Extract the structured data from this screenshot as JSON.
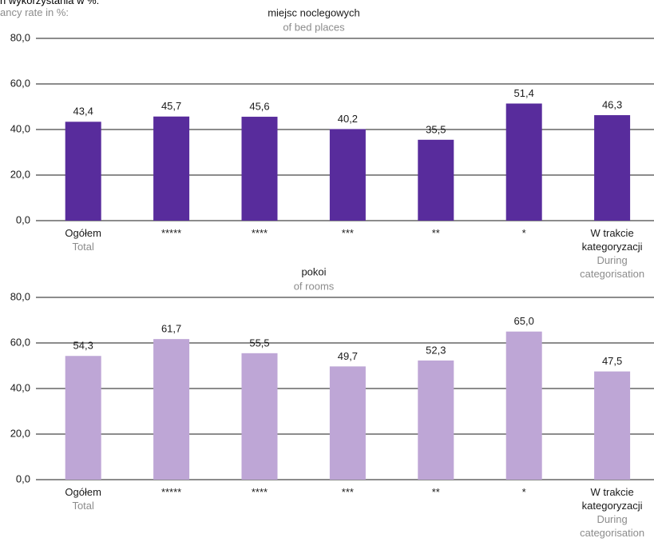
{
  "chart_data": [
    {
      "type": "bar",
      "ylabel": "n wykorzystania w %:",
      "ylabel_en": "ancy rate in %:",
      "title": "miejsc noclegowych",
      "subtitle": "of bed places",
      "categories": [
        "Ogółem",
        "*****",
        "****",
        "***",
        "**",
        "*",
        "W trakcie kategoryzacji"
      ],
      "category_subtitles": [
        "Total",
        null,
        null,
        null,
        null,
        null,
        "During categorisation"
      ],
      "values": [
        43.4,
        45.7,
        45.6,
        40.2,
        35.5,
        51.4,
        46.3
      ],
      "value_labels": [
        "43,4",
        "45,7",
        "45,6",
        "40,2",
        "35,5",
        "51,4",
        "46,3"
      ],
      "color": "#582c9c",
      "ylim": [
        0,
        80
      ],
      "yticks": [
        {
          "value": 0,
          "label": "0,0"
        },
        {
          "value": 20,
          "label": "20,0"
        },
        {
          "value": 40,
          "label": "40,0"
        },
        {
          "value": 60,
          "label": "60,0"
        },
        {
          "value": 80,
          "label": "80,0"
        }
      ],
      "grid": true
    },
    {
      "type": "bar",
      "title": "pokoi",
      "subtitle": "of rooms",
      "categories": [
        "Ogółem",
        "*****",
        "****",
        "***",
        "**",
        "*",
        "W trakcie kategoryzacji"
      ],
      "category_subtitles": [
        "Total",
        null,
        null,
        null,
        null,
        null,
        "During categorisation"
      ],
      "values": [
        54.3,
        61.7,
        55.5,
        49.7,
        52.3,
        65.0,
        47.5
      ],
      "value_labels": [
        "54,3",
        "61,7",
        "55,5",
        "49,7",
        "52,3",
        "65,0",
        "47,5"
      ],
      "color": "#bea6d6",
      "ylim": [
        0,
        80
      ],
      "yticks": [
        {
          "value": 0,
          "label": "0,0"
        },
        {
          "value": 20,
          "label": "20,0"
        },
        {
          "value": 40,
          "label": "40,0"
        },
        {
          "value": 60,
          "label": "60,0"
        },
        {
          "value": 80,
          "label": "80,0"
        }
      ],
      "grid": true
    }
  ]
}
